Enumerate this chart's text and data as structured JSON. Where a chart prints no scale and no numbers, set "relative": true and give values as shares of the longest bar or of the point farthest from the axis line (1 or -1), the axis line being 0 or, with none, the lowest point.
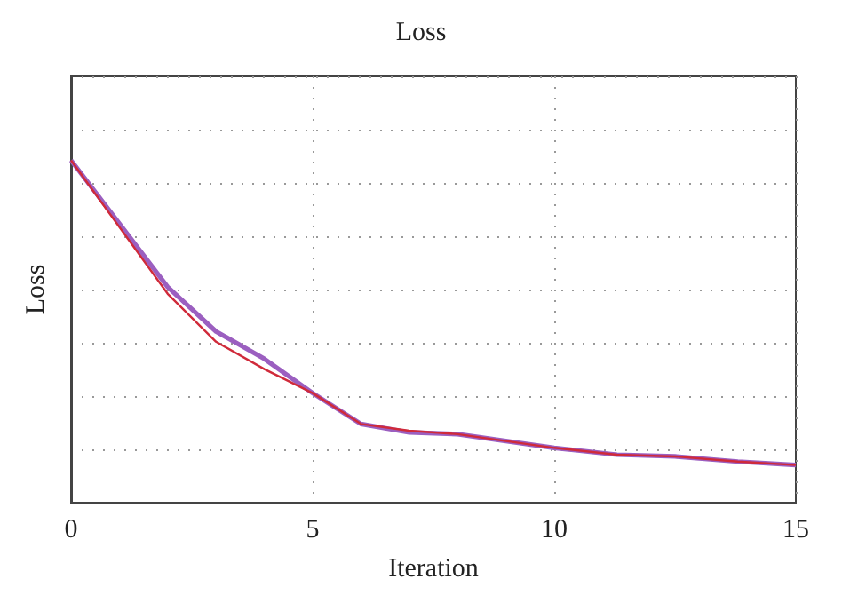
{
  "chart_data": {
    "type": "line",
    "title": "Loss",
    "xlabel": "Iteration",
    "ylabel": "Loss",
    "relative": true,
    "xlim": [
      0,
      15
    ],
    "xticks": [
      0,
      5,
      10,
      15
    ],
    "grid": true,
    "marker": "none",
    "line_style": "solid",
    "series": [
      {
        "color": "#9b5fc0",
        "x": [
          0,
          2,
          3,
          4,
          5,
          6,
          7,
          8,
          10,
          11.3,
          12.5,
          13.8,
          15
        ],
        "values": [
          1,
          0.63,
          0.5,
          0.42,
          0.32,
          0.23,
          0.205,
          0.2,
          0.16,
          0.14,
          0.135,
          0.12,
          0.11
        ]
      },
      {
        "color": "#d02a3a",
        "x": [
          0,
          2,
          3,
          4,
          5,
          6,
          7,
          8,
          10,
          11.3,
          12.5,
          13.8,
          15
        ],
        "values": [
          1,
          0.61,
          0.47,
          0.39,
          0.32,
          0.23,
          0.21,
          0.2,
          0.16,
          0.14,
          0.135,
          0.12,
          0.11
        ]
      }
    ]
  }
}
